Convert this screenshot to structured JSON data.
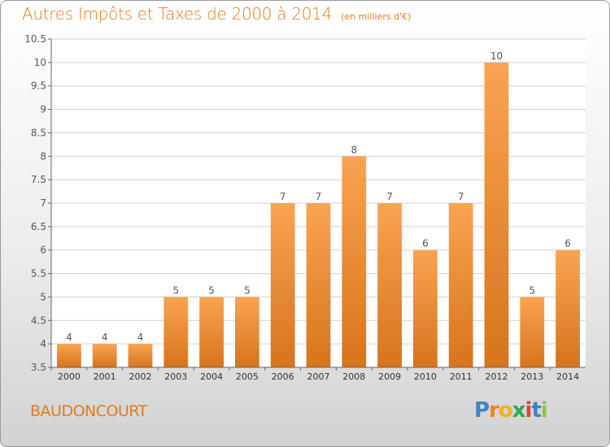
{
  "header": {
    "title": "Autres Impôts et Taxes de 2000 à 2014",
    "unit": "(en milliers d'€)"
  },
  "commune": "BAUDONCOURT",
  "brand": {
    "name": "Proxiti",
    "letters": [
      "P",
      "r",
      "o",
      "x",
      "i",
      "t",
      "i"
    ],
    "letter_colors": [
      "#3d83c6",
      "#e8821d",
      "#f2b21a",
      "#2fa84f",
      "#e0422e",
      "#3d83c6",
      "#8cc63f"
    ]
  },
  "colors": {
    "bar_top": "#f9a453",
    "bar_bottom": "#d7741c",
    "grid": "#d0d0d0",
    "axis": "#666666"
  },
  "chart_data": {
    "type": "bar",
    "categories": [
      "2000",
      "2001",
      "2002",
      "2003",
      "2004",
      "2005",
      "2006",
      "2007",
      "2008",
      "2009",
      "2010",
      "2011",
      "2012",
      "2013",
      "2014"
    ],
    "values": [
      4,
      4,
      4,
      5,
      5,
      5,
      7,
      7,
      8,
      7,
      6,
      7,
      10,
      5,
      6
    ],
    "data_labels": [
      "4",
      "4",
      "4",
      "5",
      "5",
      "5",
      "7",
      "7",
      "8",
      "7",
      "6",
      "7",
      "10",
      "5",
      "6"
    ],
    "title": "Autres Impôts et Taxes de 2000 à 2014",
    "xlabel": "",
    "ylabel": "",
    "ylim": [
      3.5,
      10.5
    ],
    "yticks": [
      "3.5",
      "4",
      "4.5",
      "5",
      "5.5",
      "6",
      "6.5",
      "7",
      "7.5",
      "8",
      "8.5",
      "9",
      "9.5",
      "10",
      "10.5"
    ],
    "grid": true,
    "legend": "none"
  }
}
